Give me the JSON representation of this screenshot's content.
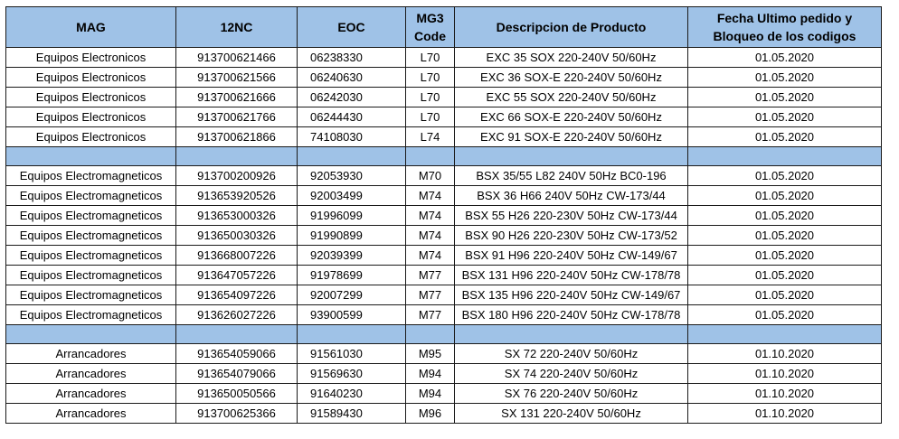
{
  "table": {
    "headers": {
      "mag": "MAG",
      "nc12": "12NC",
      "eoc": "EOC",
      "mg3_line1": "MG3",
      "mg3_line2": "Code",
      "desc": "Descripcion de Producto",
      "fecha_line1": "Fecha Ultimo pedido y",
      "fecha_line2": "Bloqueo de los codigos"
    },
    "groups": [
      {
        "rows": [
          {
            "mag": "Equipos Electronicos",
            "nc12": "913700621466",
            "eoc": "06238330",
            "mg3": "L70",
            "desc": "EXC 35 SOX 220-240V 50/60Hz",
            "fecha": "01.05.2020"
          },
          {
            "mag": "Equipos Electronicos",
            "nc12": "913700621566",
            "eoc": "06240630",
            "mg3": "L70",
            "desc": "EXC 36 SOX-E 220-240V 50/60Hz",
            "fecha": "01.05.2020"
          },
          {
            "mag": "Equipos Electronicos",
            "nc12": "913700621666",
            "eoc": "06242030",
            "mg3": "L70",
            "desc": "EXC 55 SOX 220-240V 50/60Hz",
            "fecha": "01.05.2020"
          },
          {
            "mag": "Equipos Electronicos",
            "nc12": "913700621766",
            "eoc": "06244430",
            "mg3": "L70",
            "desc": "EXC 66 SOX-E 220-240V 50/60Hz",
            "fecha": "01.05.2020"
          },
          {
            "mag": "Equipos Electronicos",
            "nc12": "913700621866",
            "eoc": "74108030",
            "mg3": "L74",
            "desc": "EXC 91 SOX-E 220-240V 50/60Hz",
            "fecha": "01.05.2020"
          }
        ]
      },
      {
        "rows": [
          {
            "mag": "Equipos Electromagneticos",
            "nc12": "913700200926",
            "eoc": "92053930",
            "mg3": "M70",
            "desc": "BSX 35/55 L82 240V 50Hz BC0-196",
            "fecha": "01.05.2020"
          },
          {
            "mag": "Equipos Electromagneticos",
            "nc12": "913653920526",
            "eoc": "92003499",
            "mg3": "M74",
            "desc": "BSX 36 H66 240V 50Hz CW-173/44",
            "fecha": "01.05.2020"
          },
          {
            "mag": "Equipos Electromagneticos",
            "nc12": "913653000326",
            "eoc": "91996099",
            "mg3": "M74",
            "desc": "BSX 55 H26 220-230V 50Hz CW-173/44",
            "fecha": "01.05.2020"
          },
          {
            "mag": "Equipos Electromagneticos",
            "nc12": "913650030326",
            "eoc": "91990899",
            "mg3": "M74",
            "desc": "BSX 90 H26 220-230V 50Hz CW-173/52",
            "fecha": "01.05.2020"
          },
          {
            "mag": "Equipos Electromagneticos",
            "nc12": "913668007226",
            "eoc": "92039399",
            "mg3": "M74",
            "desc": "BSX 91 H96 220-240V 50Hz CW-149/67",
            "fecha": "01.05.2020"
          },
          {
            "mag": "Equipos Electromagneticos",
            "nc12": "913647057226",
            "eoc": "91978699",
            "mg3": "M77",
            "desc": "BSX 131 H96 220-240V 50Hz CW-178/78",
            "fecha": "01.05.2020"
          },
          {
            "mag": "Equipos Electromagneticos",
            "nc12": "913654097226",
            "eoc": "92007299",
            "mg3": "M77",
            "desc": "BSX 135 H96 220-240V 50Hz CW-149/67",
            "fecha": "01.05.2020"
          },
          {
            "mag": "Equipos Electromagneticos",
            "nc12": "913626027226",
            "eoc": "93900599",
            "mg3": "M77",
            "desc": "BSX 180 H96 220-240V 50Hz CW-178/78",
            "fecha": "01.05.2020"
          }
        ]
      },
      {
        "rows": [
          {
            "mag": "Arrancadores",
            "nc12": "913654059066",
            "eoc": "91561030",
            "mg3": "M95",
            "desc": "SX 72 220-240V 50/60Hz",
            "fecha": "01.10.2020"
          },
          {
            "mag": "Arrancadores",
            "nc12": "913654079066",
            "eoc": "91569630",
            "mg3": "M94",
            "desc": "SX 74 220-240V 50/60Hz",
            "fecha": "01.10.2020"
          },
          {
            "mag": "Arrancadores",
            "nc12": "913650050566",
            "eoc": "91640230",
            "mg3": "M94",
            "desc": "SX 76 220-240V 50/60Hz",
            "fecha": "01.10.2020"
          },
          {
            "mag": "Arrancadores",
            "nc12": "913700625366",
            "eoc": "91589430",
            "mg3": "M96",
            "desc": "SX 131 220-240V 50/60Hz",
            "fecha": "01.10.2020"
          }
        ]
      }
    ],
    "colors": {
      "header_bg": "#9fc2e7",
      "separator_bg": "#9fc2e7",
      "border": "#1a1a1a"
    }
  }
}
